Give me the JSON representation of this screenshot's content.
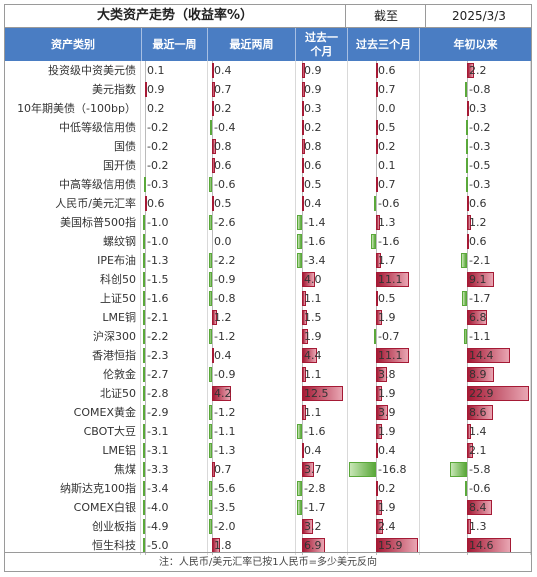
{
  "title": "大类资产走势（收益率%）",
  "asof_label": "截至",
  "asof_date": "2025/3/3",
  "columns": [
    "资产类别",
    "最近一周",
    "最近两周",
    "过去一个月",
    "过去三个月",
    "年初以来"
  ],
  "colors": {
    "header": "#4a7dc3",
    "positive": "#a51a35",
    "negative": "#5aa83a"
  },
  "rows": [
    {
      "name": "投资级中资美元债",
      "values": [
        0.1,
        0.4,
        0.9,
        0.6,
        2.2
      ]
    },
    {
      "name": "美元指数",
      "values": [
        0.9,
        0.7,
        0.9,
        0.7,
        -0.8
      ]
    },
    {
      "name": "10年期美债（-100bp）",
      "values": [
        0.2,
        0.2,
        0.3,
        0.0,
        0.3
      ]
    },
    {
      "name": "中低等级信用债",
      "values": [
        -0.2,
        -0.4,
        0.2,
        0.5,
        -0.2
      ]
    },
    {
      "name": "国债",
      "values": [
        -0.2,
        0.8,
        0.8,
        0.2,
        -0.3
      ]
    },
    {
      "name": "国开债",
      "values": [
        -0.2,
        0.6,
        0.6,
        0.1,
        -0.5
      ]
    },
    {
      "name": "中高等级信用债",
      "values": [
        -0.3,
        -0.6,
        0.5,
        0.7,
        -0.3
      ]
    },
    {
      "name": "人民币/美元汇率",
      "values": [
        0.6,
        0.5,
        0.4,
        -0.6,
        0.6
      ]
    },
    {
      "name": "美国标普500指",
      "values": [
        -1.0,
        -2.6,
        -1.4,
        1.3,
        1.2
      ]
    },
    {
      "name": "螺纹钢",
      "values": [
        -1.0,
        0.0,
        -1.6,
        -1.6,
        0.6
      ]
    },
    {
      "name": "IPE布油",
      "values": [
        -1.3,
        -2.2,
        -3.4,
        1.7,
        -2.1
      ]
    },
    {
      "name": "科创50",
      "values": [
        -1.5,
        -0.9,
        4.0,
        11.1,
        9.1
      ]
    },
    {
      "name": "上证50",
      "values": [
        -1.6,
        -0.8,
        1.1,
        0.5,
        -1.7
      ]
    },
    {
      "name": "LME铜",
      "values": [
        -2.1,
        1.2,
        1.5,
        1.9,
        6.8
      ]
    },
    {
      "name": "沪深300",
      "values": [
        -2.2,
        -1.2,
        1.9,
        -0.7,
        -1.1
      ]
    },
    {
      "name": "香港恒指",
      "values": [
        -2.3,
        0.4,
        4.4,
        11.1,
        14.4
      ]
    },
    {
      "name": "伦敦金",
      "values": [
        -2.7,
        -0.9,
        1.1,
        3.8,
        8.9
      ]
    },
    {
      "name": "北证50",
      "values": [
        -2.8,
        4.2,
        12.5,
        1.9,
        22.9
      ]
    },
    {
      "name": "COMEX黄金",
      "values": [
        -2.9,
        -1.2,
        1.1,
        3.9,
        8.6
      ]
    },
    {
      "name": "CBOT大豆",
      "values": [
        -3.1,
        -1.1,
        -1.6,
        1.9,
        1.4
      ]
    },
    {
      "name": "LME铝",
      "values": [
        -3.1,
        -1.3,
        0.4,
        0.4,
        2.1
      ]
    },
    {
      "name": "焦煤",
      "values": [
        -3.3,
        0.7,
        3.7,
        -16.8,
        -5.8
      ]
    },
    {
      "name": "纳斯达克100指",
      "values": [
        -3.4,
        -5.6,
        -2.8,
        0.2,
        -0.6
      ]
    },
    {
      "name": "COMEX白银",
      "values": [
        -4.0,
        -3.5,
        -1.7,
        1.9,
        8.4
      ]
    },
    {
      "name": "创业板指",
      "values": [
        -4.9,
        -2.0,
        3.2,
        2.4,
        1.3
      ]
    },
    {
      "name": "恒生科技",
      "values": [
        -5.0,
        1.8,
        6.9,
        15.9,
        14.6
      ]
    }
  ],
  "footnote": "注：人民币/美元汇率已按1人民币=多少美元反向"
}
